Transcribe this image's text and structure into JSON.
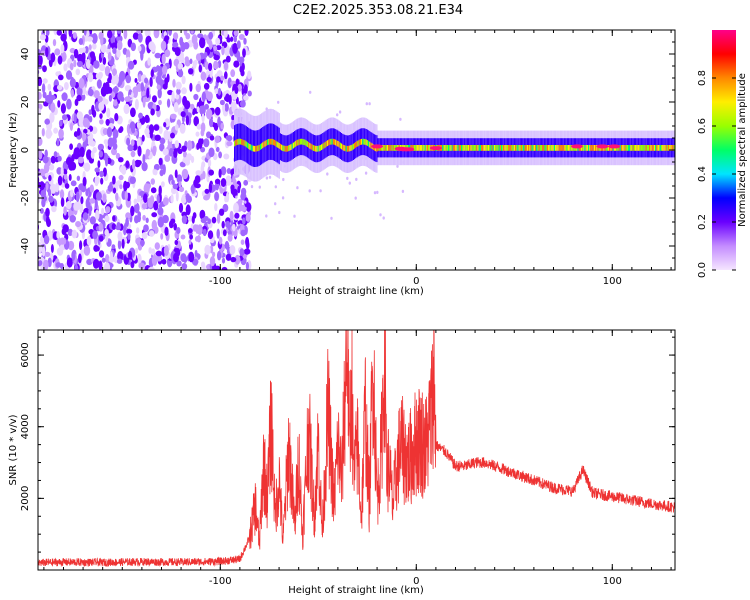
{
  "title": "C2E2.2025.353.08.21.E34",
  "colors": {
    "signal_line": "#ee3333",
    "frame": "#000000"
  },
  "chart_data": [
    {
      "type": "heatmap",
      "title": "",
      "xlabel": "Height of straight line (km)",
      "ylabel": "Frequency (Hz)",
      "xlim": [
        -193,
        132
      ],
      "ylim": [
        -50,
        50
      ],
      "xticks": [
        -100,
        0,
        100
      ],
      "yticks": [
        -40,
        -20,
        0,
        20,
        40
      ],
      "colorbar": {
        "label": "Normalized spectral amplitude",
        "range": [
          0,
          1
        ],
        "ticks": [
          0.0,
          0.2,
          0.4,
          0.6,
          0.8
        ],
        "colormap": [
          "#f5e6ff",
          "#c48cff",
          "#6a00ff",
          "#0000ff",
          "#00e5ff",
          "#00ff66",
          "#99ff00",
          "#ffee00",
          "#ff8800",
          "#ff0000",
          "#ff0088"
        ]
      },
      "features": [
        {
          "region": "noise",
          "x_range": [
            -193,
            -88
          ],
          "freq_range": [
            -50,
            50
          ],
          "amplitude": [
            0.0,
            0.2
          ]
        },
        {
          "region": "signal_band",
          "x_range": [
            -93,
            132
          ],
          "center_freq_hz": 0.5,
          "band_halfwidth_hz": 4,
          "amplitude": [
            0.4,
            1.0
          ]
        }
      ]
    },
    {
      "type": "line",
      "title": "",
      "xlabel": "Height of straight line (km)",
      "ylabel": "SNR (10 * v/v)",
      "xlim": [
        -193,
        132
      ],
      "ylim": [
        0,
        6700
      ],
      "xticks": [
        -100,
        0,
        100
      ],
      "yticks": [
        2000,
        4000,
        6000
      ],
      "series": [
        {
          "x": [
            -193,
            -180,
            -160,
            -140,
            -120,
            -100,
            -90,
            -85,
            -82,
            -80,
            -78,
            -76,
            -74,
            -72,
            -70,
            -68,
            -65,
            -62,
            -60,
            -58,
            -55,
            -52,
            -50,
            -48,
            -45,
            -42,
            -40,
            -38,
            -36,
            -35,
            -34,
            -33,
            -32,
            -30,
            -28,
            -26,
            -24,
            -22,
            -20,
            -18,
            -16,
            -15,
            -14,
            -12,
            -10,
            -8,
            -6,
            -4,
            -2,
            0,
            2,
            5,
            8,
            9,
            10,
            12,
            15,
            20,
            25,
            30,
            35,
            40,
            50,
            60,
            70,
            80,
            85,
            90,
            100,
            110,
            120,
            132
          ],
          "y": [
            200,
            220,
            210,
            230,
            220,
            240,
            300,
            900,
            1800,
            700,
            3000,
            2000,
            4200,
            1500,
            2600,
            800,
            3500,
            1200,
            3200,
            900,
            4000,
            1500,
            3600,
            1000,
            4500,
            1800,
            3500,
            2500,
            5500,
            6700,
            3000,
            5800,
            2500,
            3500,
            1500,
            4500,
            1800,
            6000,
            2000,
            3200,
            6200,
            2500,
            3000,
            1800,
            2800,
            3500,
            3200,
            3000,
            3300,
            3600,
            3700,
            3400,
            4500,
            5500,
            3500,
            3400,
            3300,
            2900,
            2900,
            3000,
            3000,
            2900,
            2700,
            2500,
            2300,
            2200,
            2800,
            2150,
            2050,
            1950,
            1850,
            1750
          ]
        }
      ]
    }
  ]
}
